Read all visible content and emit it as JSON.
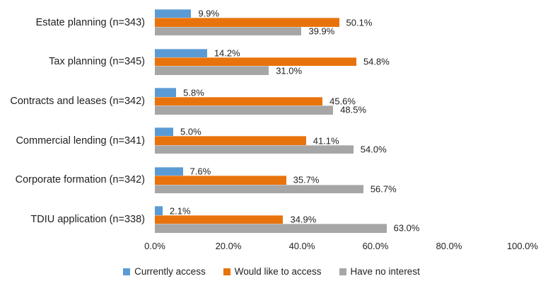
{
  "chart_data": {
    "type": "bar",
    "orientation": "horizontal",
    "title": "",
    "xlabel": "",
    "ylabel": "",
    "xlim": [
      0,
      100
    ],
    "grid": false,
    "legend_position": "bottom",
    "x_ticks": [
      "0.0%",
      "20.0%",
      "40.0%",
      "60.0%",
      "80.0%",
      "100.0%"
    ],
    "x_tick_values": [
      0,
      20,
      40,
      60,
      80,
      100
    ],
    "categories": [
      "Estate planning (n=343)",
      "Tax planning (n=345)",
      "Contracts and leases (n=342)",
      "Commercial lending (n=341)",
      "Corporate formation (n=342)",
      "TDIU application (n=338)"
    ],
    "series": [
      {
        "name": "Currently access",
        "color": "#5B9BD5",
        "values": [
          9.9,
          14.2,
          5.8,
          5.0,
          7.6,
          2.1
        ],
        "labels": [
          "9.9%",
          "14.2%",
          "5.8%",
          "5.0%",
          "7.6%",
          "2.1%"
        ]
      },
      {
        "name": "Would like to access",
        "color": "#E8730C",
        "values": [
          50.1,
          54.8,
          45.6,
          41.1,
          35.7,
          34.9
        ],
        "labels": [
          "50.1%",
          "54.8%",
          "45.6%",
          "41.1%",
          "35.7%",
          "34.9%"
        ]
      },
      {
        "name": "Have no interest",
        "color": "#A6A6A6",
        "values": [
          39.9,
          31.0,
          48.5,
          54.0,
          56.7,
          63.0
        ],
        "labels": [
          "39.9%",
          "31.0%",
          "48.5%",
          "54.0%",
          "56.7%",
          "63.0%"
        ]
      }
    ]
  }
}
